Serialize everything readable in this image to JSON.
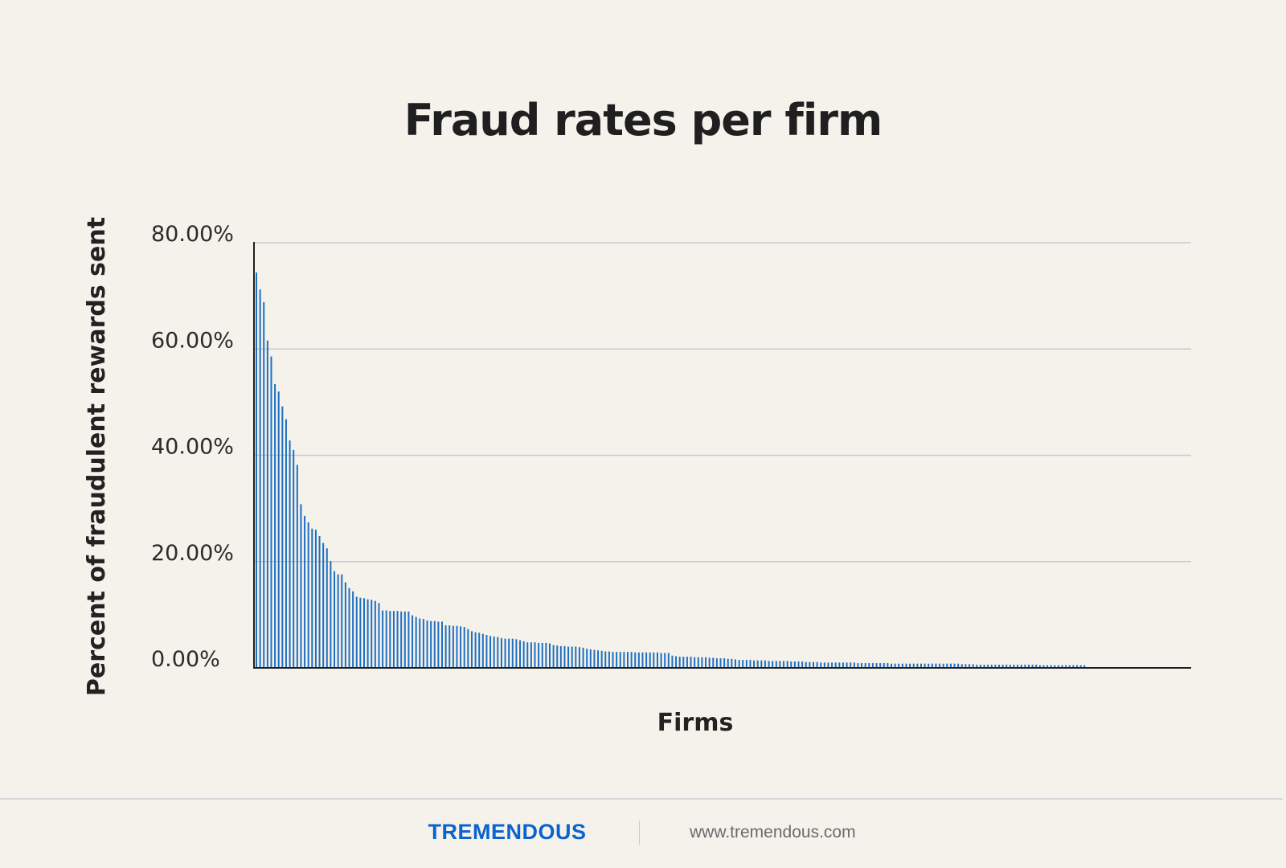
{
  "chart_data": {
    "type": "bar",
    "title": "Fraud rates per firm",
    "xlabel": "Firms",
    "ylabel": "Percent of fraudulent rewards sent",
    "ylim": [
      0,
      80
    ],
    "yticks": [
      "0.00%",
      "20.00%",
      "40.00%",
      "60.00%",
      "80.00%"
    ],
    "grid": true,
    "legend": "none",
    "bar_color": "#1f6fc0",
    "series": [
      {
        "values": [
          74.4,
          71.2,
          68.8,
          61.6,
          58.6,
          53.4,
          52.0,
          49.2,
          46.8,
          42.8,
          41.0,
          38.2,
          30.8,
          28.6,
          27.4,
          26.2,
          26.0,
          24.8,
          23.5,
          22.5,
          20.1,
          18.2,
          17.6,
          17.6,
          16.1,
          15.0,
          14.4,
          13.4,
          13.2,
          13.1,
          12.9,
          12.8,
          12.6,
          12.2,
          10.8,
          10.8,
          10.7,
          10.7,
          10.7,
          10.6,
          10.6,
          10.6,
          9.9,
          9.6,
          9.3,
          9.2,
          8.9,
          8.8,
          8.8,
          8.7,
          8.7,
          8.0,
          8.0,
          7.9,
          7.9,
          7.8,
          7.7,
          7.3,
          6.9,
          6.7,
          6.6,
          6.4,
          6.2,
          6.0,
          5.9,
          5.8,
          5.6,
          5.5,
          5.5,
          5.5,
          5.4,
          5.2,
          5.0,
          4.8,
          4.8,
          4.8,
          4.7,
          4.7,
          4.7,
          4.6,
          4.3,
          4.2,
          4.1,
          4.1,
          4.0,
          4.0,
          4.0,
          3.9,
          3.8,
          3.6,
          3.5,
          3.4,
          3.3,
          3.2,
          3.1,
          3.1,
          3.0,
          3.0,
          3.0,
          3.0,
          3.0,
          3.0,
          2.9,
          2.9,
          2.9,
          2.9,
          2.9,
          2.9,
          2.9,
          2.8,
          2.8,
          2.8,
          2.3,
          2.2,
          2.1,
          2.1,
          2.1,
          2.1,
          2.0,
          2.0,
          2.0,
          2.0,
          1.9,
          1.9,
          1.8,
          1.8,
          1.8,
          1.7,
          1.7,
          1.6,
          1.5,
          1.5,
          1.5,
          1.5,
          1.4,
          1.4,
          1.4,
          1.4,
          1.3,
          1.3,
          1.3,
          1.3,
          1.3,
          1.3,
          1.2,
          1.2,
          1.2,
          1.2,
          1.1,
          1.1,
          1.1,
          1.1,
          1.0,
          1.0,
          1.0,
          1.0,
          1.0,
          1.0,
          1.0,
          1.0,
          1.0,
          1.0,
          0.9,
          0.9,
          0.9,
          0.9,
          0.9,
          0.9,
          0.9,
          0.9,
          0.9,
          0.8,
          0.8,
          0.8,
          0.8,
          0.8,
          0.8,
          0.8,
          0.8,
          0.8,
          0.8,
          0.8,
          0.8,
          0.8,
          0.8,
          0.8,
          0.8,
          0.8,
          0.8,
          0.8,
          0.7,
          0.7,
          0.7,
          0.7,
          0.6,
          0.6,
          0.6,
          0.6,
          0.6,
          0.6,
          0.6,
          0.6,
          0.6,
          0.6,
          0.6,
          0.6,
          0.6,
          0.6,
          0.6,
          0.6,
          0.6,
          0.5,
          0.5,
          0.5,
          0.5,
          0.5,
          0.5,
          0.5,
          0.5,
          0.5,
          0.5,
          0.5,
          0.5,
          0.5
        ]
      }
    ]
  },
  "footer": {
    "brand": "TREMENDOUS",
    "website": "www.tremendous.com",
    "brand_color": "#0b63ce"
  }
}
